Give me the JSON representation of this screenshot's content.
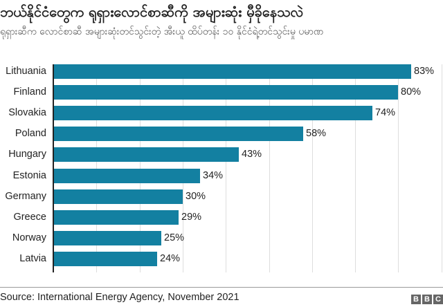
{
  "header": {
    "title": "ဘယ်နိုင်ငံတွေက ရုရှားလောင်စာဆီကို အများဆုံး မှီခိုနေသလဲ",
    "subtitle": "ရုရှားဆီက လောင်စာဆီ အများဆုံးတင်သွင်းတဲ့ အီးယူ ထိပ်တန်း ၁၀ နိုင်ငံရဲ့တင်သွင်းမှု ပမာဏ"
  },
  "footer": {
    "source": "Source: International Energy Agency, November 2021",
    "logo_letters": [
      "B",
      "B",
      "C"
    ]
  },
  "colors": {
    "bar": "#1380A1",
    "grid": "#dddddd",
    "axis": "#222222"
  },
  "rows": [
    {
      "label": "Lithuania",
      "value": 83,
      "value_label": "83%"
    },
    {
      "label": "Finland",
      "value": 80,
      "value_label": "80%"
    },
    {
      "label": "Slovakia",
      "value": 74,
      "value_label": "74%"
    },
    {
      "label": "Poland",
      "value": 58,
      "value_label": "58%"
    },
    {
      "label": "Hungary",
      "value": 43,
      "value_label": "43%"
    },
    {
      "label": "Estonia",
      "value": 34,
      "value_label": "34%"
    },
    {
      "label": "Germany",
      "value": 30,
      "value_label": "30%"
    },
    {
      "label": "Greece",
      "value": 29,
      "value_label": "29%"
    },
    {
      "label": "Norway",
      "value": 25,
      "value_label": "25%"
    },
    {
      "label": "Latvia",
      "value": 24,
      "value_label": "24%"
    }
  ],
  "chart_data": {
    "type": "bar",
    "orientation": "horizontal",
    "title": "ဘယ်နိုင်ငံတွေက ရုရှားလောင်စာဆီကို အများဆုံး မှီခိုနေသလဲ",
    "subtitle": "ရုရှားဆီက လောင်စာဆီ အများဆုံးတင်သွင်းတဲ့ အီးယူ ထိပ်တန်း ၁၀ နိုင်ငံရဲ့တင်သွင်းမှု ပမာဏ",
    "categories": [
      "Lithuania",
      "Finland",
      "Slovakia",
      "Poland",
      "Hungary",
      "Estonia",
      "Germany",
      "Greece",
      "Norway",
      "Latvia"
    ],
    "values": [
      83,
      80,
      74,
      58,
      43,
      34,
      30,
      29,
      25,
      24
    ],
    "value_labels": [
      "83%",
      "80%",
      "74%",
      "58%",
      "43%",
      "34%",
      "30%",
      "29%",
      "25%",
      "24%"
    ],
    "unit": "%",
    "xlabel": "",
    "ylabel": "",
    "xlim": [
      0,
      90
    ],
    "grid": true,
    "grid_step": 10,
    "legend": null,
    "source": "Source: International Energy Agency, November 2021"
  }
}
